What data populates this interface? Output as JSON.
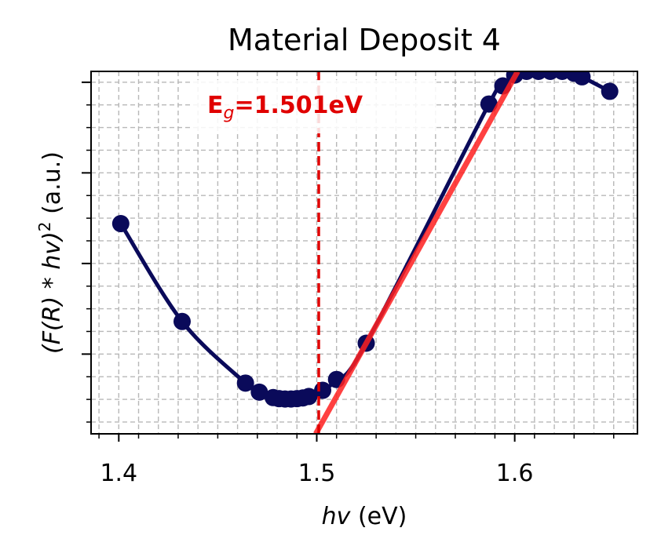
{
  "chart_data": {
    "type": "line",
    "title": "Material Deposit 4",
    "xlabel_italic": "hv",
    "xlabel_unit": " (eV)",
    "ylabel_prefix": "(F(R) * hv)",
    "ylabel_sup": "2",
    "ylabel_suffix": " (a.u.)",
    "xlim": [
      1.386,
      1.662
    ],
    "ylim": [
      0.0,
      1.0
    ],
    "x_ticks": [
      1.4,
      1.5,
      1.6
    ],
    "x_tick_labels": [
      "1.4",
      "1.5",
      "1.6"
    ],
    "grid": true,
    "series": [
      {
        "color": "#0a0a5a",
        "marker": "circle",
        "x": [
          1.401,
          1.432,
          1.464,
          1.471,
          1.478,
          1.481,
          1.484,
          1.487,
          1.49,
          1.493,
          1.496,
          1.503,
          1.51,
          1.525,
          1.587,
          1.594,
          1.6,
          1.606,
          1.612,
          1.618,
          1.624,
          1.63,
          1.634,
          1.648
        ],
        "y": [
          0.58,
          0.31,
          0.14,
          0.115,
          0.1,
          0.097,
          0.096,
          0.096,
          0.097,
          0.099,
          0.103,
          0.12,
          0.15,
          0.25,
          0.91,
          0.96,
          0.99,
          1.0,
          1.0,
          1.0,
          1.0,
          0.995,
          0.985,
          0.945
        ]
      }
    ],
    "fit_line": {
      "color": "#ff2020",
      "x": [
        1.4995,
        1.6015
      ],
      "y": [
        0.0,
        1.0
      ]
    },
    "eg_line": {
      "x": 1.501,
      "color": "#e00000"
    },
    "annotation": {
      "prefix": "E",
      "subscript": "g",
      "value_text": "=1.501eV",
      "color": "#e00000"
    }
  }
}
